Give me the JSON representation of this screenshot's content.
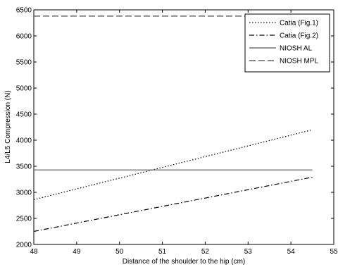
{
  "chart_data": {
    "type": "line",
    "xlabel": "Distance of the shoulder to the hip (cm)",
    "ylabel": "L4/L5 Compression (N)",
    "xlim": [
      48,
      55
    ],
    "ylim": [
      2000,
      6500
    ],
    "xticks": [
      48,
      49,
      50,
      51,
      52,
      53,
      54,
      55
    ],
    "yticks": [
      2000,
      2500,
      3000,
      3500,
      4000,
      4500,
      5000,
      5500,
      6000,
      6500
    ],
    "grid": false,
    "legend_position": "top-right",
    "series": [
      {
        "name": "Catia (Fig.1)",
        "style": "dotted",
        "color": "#000000",
        "x": [
          48,
          54.5
        ],
        "y": [
          2860,
          4200
        ]
      },
      {
        "name": "Catia (Fig.2)",
        "style": "dashdot",
        "color": "#000000",
        "x": [
          48,
          54.5
        ],
        "y": [
          2250,
          3290
        ]
      },
      {
        "name": "NIOSH AL",
        "style": "solid",
        "color": "#555555",
        "x": [
          48,
          54.5
        ],
        "y": [
          3430,
          3430
        ]
      },
      {
        "name": "NIOSH MPL",
        "style": "dashed",
        "color": "#444444",
        "x": [
          48,
          54.5
        ],
        "y": [
          6380,
          6380
        ]
      }
    ]
  }
}
